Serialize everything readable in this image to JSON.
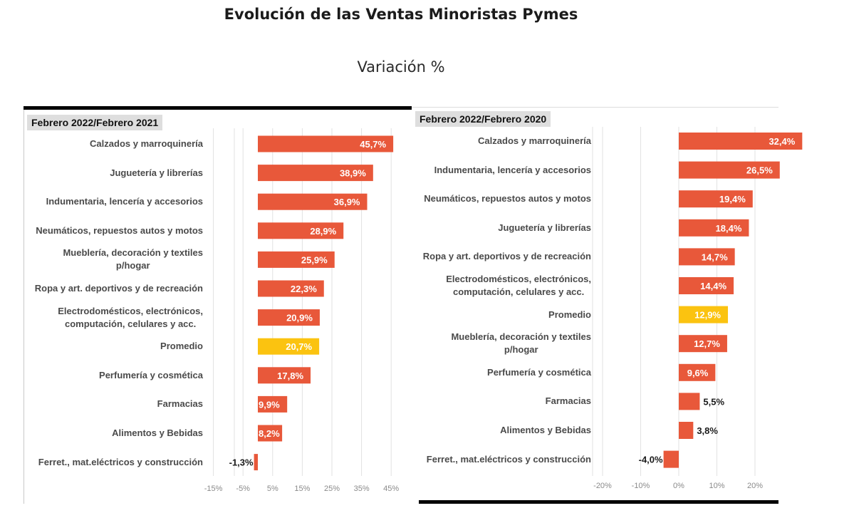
{
  "header": {
    "title": "Evolución de las Ventas Minoristas Pymes",
    "subtitle": "Variación %"
  },
  "colors": {
    "bar": "#e8583a",
    "average_bar": "#fbc310",
    "gridline": "#e2e2e2",
    "label_inside": "#ffffff",
    "label_outside": "#1a1a1a"
  },
  "chart_data": [
    {
      "type": "bar",
      "orientation": "horizontal",
      "title": "Febrero 2022/Febrero 2021",
      "xlabel": "",
      "ylabel": "",
      "xlim": [
        -20,
        50
      ],
      "ticks": [
        -15,
        -5,
        5,
        15,
        25,
        35,
        45
      ],
      "tick_labels": [
        "-15%",
        "-5%",
        "5%",
        "15%",
        "25%",
        "35%",
        "45%"
      ],
      "grid": true,
      "categories": [
        "Calzados y marroquinería",
        "Juguetería y librerías",
        "Indumentaria, lencería y accesorios",
        "Neumáticos, repuestos autos y motos",
        "Mueblería, decoración y textiles p/hogar",
        "Ropa y art. deportivos y de recreación",
        "Electrodomésticos, electrónicos, computación, celulares y acc.",
        "Promedio",
        "Perfumería y cosmética",
        "Farmacias",
        "Alimentos y Bebidas",
        "Ferret., mat.eléctricos y construcción"
      ],
      "category_lines": [
        [
          "Calzados y marroquinería"
        ],
        [
          "Juguetería y librerías"
        ],
        [
          "Indumentaria, lencería y accesorios"
        ],
        [
          "Neumáticos, repuestos autos y motos"
        ],
        [
          "Mueblería, decoración y textiles",
          "p/hogar"
        ],
        [
          "Ropa y art. deportivos y de recreación"
        ],
        [
          "Electrodomésticos, electrónicos,",
          "computación, celulares y acc."
        ],
        [
          "Promedio"
        ],
        [
          "Perfumería y cosmética"
        ],
        [
          "Farmacias"
        ],
        [
          "Alimentos y Bebidas"
        ],
        [
          "Ferret., mat.eléctricos y construcción"
        ]
      ],
      "values": [
        45.7,
        38.9,
        36.9,
        28.9,
        25.9,
        22.3,
        20.9,
        20.7,
        17.8,
        9.9,
        8.2,
        -1.3
      ],
      "value_labels": [
        "45,7%",
        "38,9%",
        "36,9%",
        "28,9%",
        "25,9%",
        "22,3%",
        "20,9%",
        "20,7%",
        "17,8%",
        "9,9%",
        "8,2%",
        "-1,3%"
      ],
      "highlight": "Promedio"
    },
    {
      "type": "bar",
      "orientation": "horizontal",
      "title": "Febrero 2022/Febrero 2020",
      "xlabel": "",
      "ylabel": "",
      "xlim": [
        -20,
        25
      ],
      "ticks": [
        -20,
        -10,
        0,
        10,
        20
      ],
      "tick_labels": [
        "-20%",
        "-10%",
        "0%",
        "10%",
        "20%"
      ],
      "grid": true,
      "categories": [
        "Calzados y marroquinería",
        "Indumentaria, lencería y accesorios",
        "Neumáticos, repuestos autos y motos",
        "Juguetería y librerías",
        "Ropa y art. deportivos y de recreación",
        "Electrodomésticos, electrónicos, computación, celulares y acc.",
        "Promedio",
        "Mueblería, decoración y textiles p/hogar",
        "Perfumería y cosmética",
        "Farmacias",
        "Alimentos y Bebidas",
        "Ferret., mat.eléctricos y construcción"
      ],
      "category_lines": [
        [
          "Calzados y marroquinería"
        ],
        [
          "Indumentaria, lencería y accesorios"
        ],
        [
          "Neumáticos, repuestos autos y motos"
        ],
        [
          "Juguetería y librerías"
        ],
        [
          "Ropa y art. deportivos y de recreación"
        ],
        [
          "Electrodomésticos, electrónicos,",
          "computación, celulares y acc."
        ],
        [
          "Promedio"
        ],
        [
          "Mueblería, decoración y textiles",
          "p/hogar"
        ],
        [
          "Perfumería y cosmética"
        ],
        [
          "Farmacias"
        ],
        [
          "Alimentos y Bebidas"
        ],
        [
          "Ferret., mat.eléctricos y construcción"
        ]
      ],
      "values": [
        32.4,
        26.5,
        19.4,
        18.4,
        14.7,
        14.4,
        12.9,
        12.7,
        9.6,
        5.5,
        3.8,
        -4.0
      ],
      "value_labels": [
        "32,4%",
        "26,5%",
        "19,4%",
        "18,4%",
        "14,7%",
        "14,4%",
        "12,9%",
        "12,7%",
        "9,6%",
        "5,5%",
        "3,8%",
        "-4,0%"
      ],
      "highlight": "Promedio"
    }
  ]
}
